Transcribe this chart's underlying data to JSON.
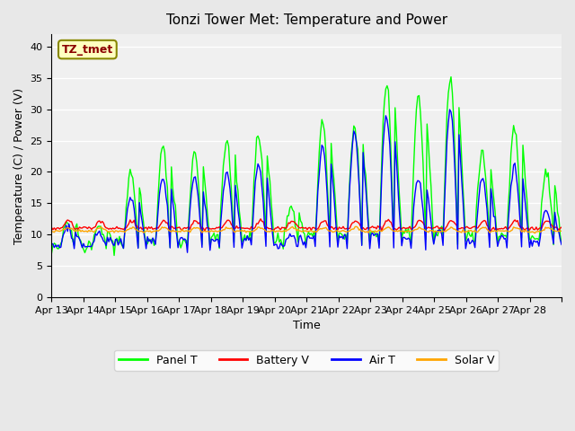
{
  "title": "Tonzi Tower Met: Temperature and Power",
  "xlabel": "Time",
  "ylabel": "Temperature (C) / Power (V)",
  "ylim": [
    0,
    42
  ],
  "yticks": [
    0,
    5,
    10,
    15,
    20,
    25,
    30,
    35,
    40
  ],
  "bg_color": "#e8e8e8",
  "plot_bg": "#f0f0f0",
  "annotation_text": "TZ_tmet",
  "annotation_color": "#8b0000",
  "annotation_bg": "#ffffc0",
  "legend": [
    "Panel T",
    "Battery V",
    "Air T",
    "Solar V"
  ],
  "colors": [
    "#00ff00",
    "#ff0000",
    "#0000ff",
    "#ffa500"
  ],
  "x_tick_labels": [
    "Apr 13",
    "Apr 14",
    "Apr 15",
    "Apr 16",
    "Apr 17",
    "Apr 18",
    "Apr 19",
    "Apr 20",
    "Apr 21",
    "Apr 22",
    "Apr 23",
    "Apr 24",
    "Apr 25",
    "Apr 26",
    "Apr 27",
    "Apr 28"
  ],
  "n_days": 16,
  "pts_per_day": 24
}
